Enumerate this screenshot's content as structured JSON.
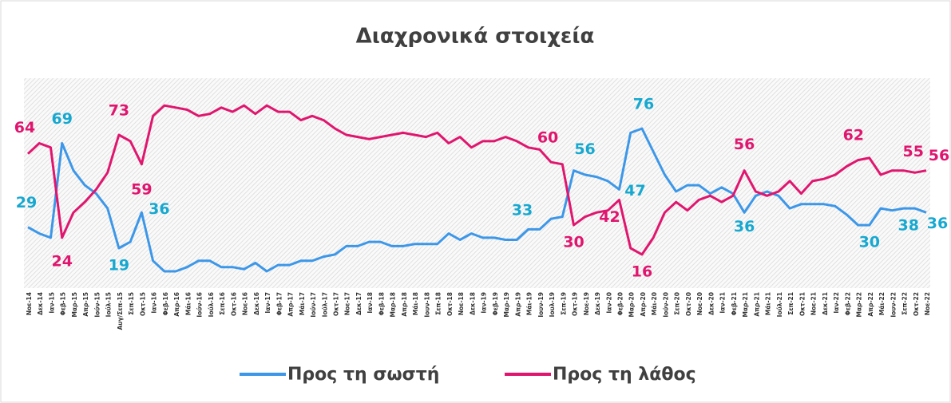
{
  "chart_data": {
    "type": "line",
    "title": "Διαχρονικά στοιχεία",
    "categories": [
      "Νοε-14",
      "Δεκ-14",
      "Ιαν-15",
      "Φεβ-15",
      "Μαρ-15",
      "Απρ-15",
      "Ιούν-15",
      "Ιούλ-15",
      "Αυγ/Σεπ-15",
      "Σεπ-15",
      "Οκτ-15",
      "Ιαν-16",
      "Φεβ-16",
      "Απρ-16",
      "Μάι-16",
      "Ιούν-16",
      "Ιούλ-16",
      "Σεπ-16",
      "Οκτ-16",
      "Νοε-16",
      "Δεκ-16",
      "Ιαν-17",
      "Φεβ-17",
      "Απρ-17",
      "Μάι-17",
      "Ιούν-17",
      "Ιούλ-17",
      "Οκτ-17",
      "Νοε-17",
      "Δεκ-17",
      "Ιαν-18",
      "Φεβ-18",
      "Μαρ-18",
      "Απρ-18",
      "Μάι-18",
      "Ιουν-18",
      "Σεπ-18",
      "Οκτ-18",
      "Νοε-18",
      "Δεκ-18",
      "Ιαν-19",
      "Φεβ-19",
      "Μαρ-19",
      "Απρ-19",
      "Μάι-19",
      "Ιουν-19",
      "Ιουλ-19",
      "Σεπ-19",
      "Οκτ-19",
      "Νοε-19",
      "Δεκ-19",
      "Ιαν-20",
      "Φεβ-20",
      "Μαρ-20",
      "Απρ-20",
      "Μάι-20",
      "Ιούν-20",
      "Σεπ-20",
      "Οκτ-20",
      "Νοε-20",
      "Δεκ-20",
      "Ιαν-21",
      "Φεβ-21",
      "Μαρ-21",
      "Απρ-21",
      "Μάι-21",
      "Ιούλ-21",
      "Σεπ-21",
      "Οκτ-21",
      "Νοε-21",
      "Δεκ-21",
      "Ιαν-22",
      "Φεβ-22",
      "Μαρ-22",
      "Απρ-22",
      "Μάι-22",
      "Ιουν-22",
      "Σεπ-22",
      "Οκτ-22",
      "Νοε-22"
    ],
    "series": [
      {
        "name": "Προς τη σωστή",
        "color": "#3d97e8",
        "label_color": "#17a8d0",
        "values": [
          29,
          26,
          24,
          69,
          56,
          49,
          45,
          38,
          19,
          22,
          36,
          13,
          8,
          8,
          10,
          13,
          13,
          10,
          10,
          9,
          12,
          8,
          11,
          11,
          13,
          13,
          15,
          16,
          20,
          20,
          22,
          22,
          20,
          20,
          21,
          21,
          21,
          26,
          23,
          26,
          24,
          24,
          23,
          23,
          28,
          28,
          33,
          34,
          56,
          54,
          53,
          51,
          47,
          74,
          76,
          65,
          54,
          46,
          49,
          49,
          45,
          48,
          45,
          36,
          44,
          46,
          44,
          38,
          40,
          40,
          40,
          39,
          35,
          30,
          30,
          38,
          37,
          38,
          38,
          36
        ],
        "labeled": [
          0,
          3,
          8,
          10,
          46,
          48,
          52,
          54,
          63,
          74,
          78,
          79
        ]
      },
      {
        "name": "Προς τη λάθος",
        "color": "#e0166e",
        "label_color": "#e0166e",
        "values": [
          64,
          69,
          67,
          24,
          36,
          41,
          47,
          55,
          73,
          70,
          59,
          82,
          87,
          86,
          85,
          82,
          83,
          86,
          84,
          87,
          83,
          87,
          84,
          84,
          80,
          82,
          80,
          76,
          73,
          72,
          71,
          72,
          73,
          74,
          73,
          72,
          74,
          69,
          72,
          67,
          70,
          70,
          72,
          70,
          67,
          66,
          60,
          59,
          30,
          34,
          36,
          37,
          42,
          19,
          16,
          24,
          36,
          41,
          37,
          42,
          44,
          41,
          44,
          56,
          46,
          44,
          46,
          51,
          45,
          51,
          52,
          54,
          58,
          61,
          62,
          54,
          56,
          56,
          55,
          56
        ],
        "labeled": [
          0,
          3,
          8,
          10,
          46,
          48,
          52,
          54,
          63,
          74,
          78,
          79
        ]
      }
    ],
    "ylim": [
      0,
      100
    ]
  }
}
